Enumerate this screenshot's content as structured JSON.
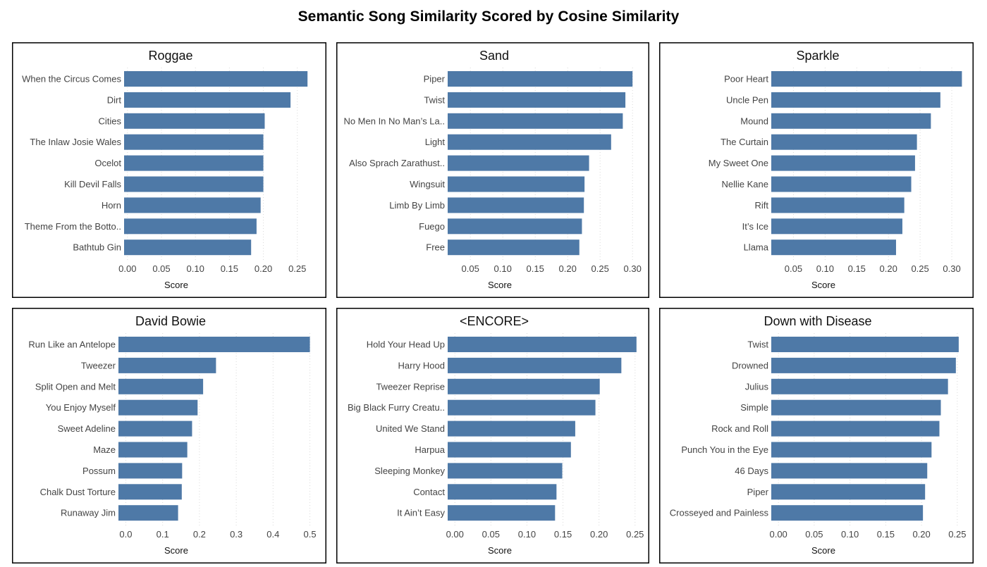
{
  "title": "Semantic Song Similarity Scored by Cosine Similarity",
  "colors": {
    "bar": "#4e79a7",
    "border": "#000000",
    "grid": "#d9d9d9"
  },
  "chart_data": [
    {
      "type": "bar",
      "orientation": "horizontal",
      "title": "Roggae",
      "xlabel": "Score",
      "xlim": [
        -0.005,
        0.27
      ],
      "ticks": [
        0.0,
        0.05,
        0.1,
        0.15,
        0.2,
        0.25
      ],
      "tick_labels": [
        "0.00",
        "0.05",
        "0.10",
        "0.15",
        "0.20",
        "0.25"
      ],
      "categories": [
        "When the Circus Comes",
        "Dirt",
        "Cities",
        "The Inlaw Josie Wales",
        "Ocelot",
        "Kill Devil Falls",
        "Horn",
        "Theme From the Botto..",
        "Bathtub Gin"
      ],
      "values": [
        0.265,
        0.24,
        0.202,
        0.2,
        0.2,
        0.2,
        0.196,
        0.19,
        0.182
      ]
    },
    {
      "type": "bar",
      "orientation": "horizontal",
      "title": "Sand",
      "xlabel": "Score",
      "xlim": [
        0.015,
        0.315
      ],
      "ticks": [
        0.05,
        0.1,
        0.15,
        0.2,
        0.25,
        0.3
      ],
      "tick_labels": [
        "0.05",
        "0.10",
        "0.15",
        "0.20",
        "0.25",
        "0.30"
      ],
      "categories": [
        "Piper",
        "Twist",
        "No Men In No Man’s La..",
        "Light",
        "Also Sprach Zarathust..",
        "Wingsuit",
        "Limb By Limb",
        "Fuego",
        "Free"
      ],
      "values": [
        0.3,
        0.289,
        0.285,
        0.267,
        0.233,
        0.226,
        0.225,
        0.222,
        0.218
      ]
    },
    {
      "type": "bar",
      "orientation": "horizontal",
      "title": "Sparkle",
      "xlabel": "Score",
      "xlim": [
        0.015,
        0.32
      ],
      "ticks": [
        0.05,
        0.1,
        0.15,
        0.2,
        0.25,
        0.3
      ],
      "tick_labels": [
        "0.05",
        "0.10",
        "0.15",
        "0.20",
        "0.25",
        "0.30"
      ],
      "categories": [
        "Poor Heart",
        "Uncle Pen",
        "Mound",
        "The Curtain",
        "My Sweet One",
        "Nellie Kane",
        "Rift",
        "It’s Ice",
        "Llama"
      ],
      "values": [
        0.316,
        0.282,
        0.267,
        0.245,
        0.242,
        0.236,
        0.225,
        0.222,
        0.212
      ]
    },
    {
      "type": "bar",
      "orientation": "horizontal",
      "title": "David Bowie",
      "xlabel": "Score",
      "xlim": [
        -0.02,
        0.52
      ],
      "ticks": [
        0.0,
        0.1,
        0.2,
        0.3,
        0.4,
        0.5
      ],
      "tick_labels": [
        "0.0",
        "0.1",
        "0.2",
        "0.3",
        "0.4",
        "0.5"
      ],
      "categories": [
        "Run Like an Antelope",
        "Tweezer",
        "Split Open and Melt",
        "You Enjoy Myself",
        "Sweet Adeline",
        "Maze",
        "Possum",
        "Chalk Dust Torture",
        "Runaway Jim"
      ],
      "values": [
        0.5,
        0.245,
        0.21,
        0.195,
        0.18,
        0.167,
        0.153,
        0.152,
        0.142
      ]
    },
    {
      "type": "bar",
      "orientation": "horizontal",
      "title": "<ENCORE>",
      "xlabel": "Score",
      "xlim": [
        -0.01,
        0.26
      ],
      "ticks": [
        0.0,
        0.05,
        0.1,
        0.15,
        0.2,
        0.25
      ],
      "tick_labels": [
        "0.00",
        "0.05",
        "0.10",
        "0.15",
        "0.20",
        "0.25"
      ],
      "categories": [
        "Hold Your Head Up",
        "Harry Hood",
        "Tweezer Reprise",
        "Big Black Furry Creatu..",
        "United We Stand",
        "Harpua",
        "Sleeping Monkey",
        "Contact",
        "It Ain’t Easy"
      ],
      "values": [
        0.252,
        0.231,
        0.201,
        0.195,
        0.167,
        0.161,
        0.149,
        0.141,
        0.139
      ]
    },
    {
      "type": "bar",
      "orientation": "horizontal",
      "title": "Down with Disease",
      "xlabel": "Score",
      "xlim": [
        -0.01,
        0.26
      ],
      "ticks": [
        0.0,
        0.05,
        0.1,
        0.15,
        0.2,
        0.25
      ],
      "tick_labels": [
        "0.00",
        "0.05",
        "0.10",
        "0.15",
        "0.20",
        "0.25"
      ],
      "categories": [
        "Twist",
        "Drowned",
        "Julius",
        "Simple",
        "Rock and Roll",
        "Punch You in the Eye",
        "46 Days",
        "Piper",
        "Crosseyed and Painless"
      ],
      "values": [
        0.252,
        0.248,
        0.237,
        0.227,
        0.225,
        0.214,
        0.208,
        0.205,
        0.202
      ]
    }
  ]
}
